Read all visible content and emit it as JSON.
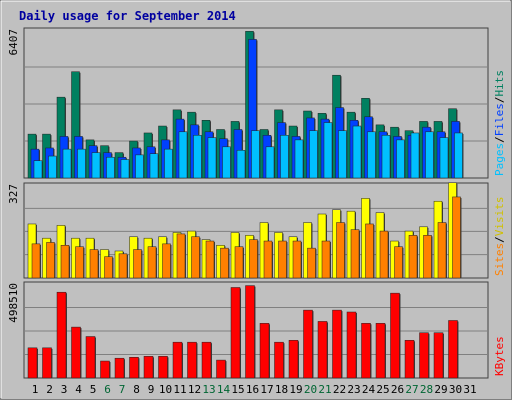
{
  "chart_data": {
    "type": "bar",
    "title": "Daily usage for September 2014",
    "categories": [
      "1",
      "2",
      "3",
      "4",
      "5",
      "6",
      "7",
      "8",
      "9",
      "10",
      "11",
      "12",
      "13",
      "14",
      "15",
      "16",
      "17",
      "18",
      "19",
      "20",
      "21",
      "22",
      "23",
      "24",
      "25",
      "26",
      "27",
      "28",
      "29",
      "30",
      "31"
    ],
    "weekend_days": [
      "6",
      "7",
      "13",
      "14",
      "20",
      "21",
      "27",
      "28"
    ],
    "day_colors": {
      "weekday": "#000000",
      "weekend": "#006633"
    },
    "panels": [
      {
        "id": "hits",
        "scale_max_label": "6407",
        "ymax": 6407,
        "grid_lines": [
          1602,
          3204,
          4805
        ],
        "right_labels": [
          {
            "text": "Hits",
            "color": "#008060"
          },
          {
            "text": "/",
            "color": "#000000"
          },
          {
            "text": "Files",
            "color": "#0040ff"
          },
          {
            "text": "/",
            "color": "#000000"
          },
          {
            "text": "Pages",
            "color": "#00c0ff"
          }
        ],
        "series": [
          {
            "name": "Hits",
            "color": "#008060",
            "values": [
              1900,
              1900,
              3500,
              4600,
              1650,
              1400,
              1100,
              1600,
              1950,
              2250,
              2950,
              2850,
              2500,
              2100,
              2450,
              6350,
              2100,
              2950,
              2250,
              2900,
              2800,
              4450,
              2850,
              3450,
              2300,
              2200,
              2050,
              2450,
              2450,
              3000
            ]
          },
          {
            "name": "Files",
            "color": "#0040ff",
            "values": [
              1250,
              1300,
              1800,
              1800,
              1400,
              1100,
              900,
              1300,
              1350,
              1650,
              2550,
              2300,
              2000,
              1700,
              2100,
              6000,
              1850,
              2400,
              1800,
              2600,
              2550,
              3050,
              2500,
              2650,
              2000,
              1800,
              1850,
              2200,
              2000,
              2450
            ]
          },
          {
            "name": "Pages",
            "color": "#00c0ff",
            "values": [
              750,
              950,
              1250,
              1250,
              1100,
              900,
              800,
              1000,
              1050,
              1250,
              2000,
              1850,
              1750,
              1350,
              1200,
              2050,
              1350,
              1850,
              1650,
              2050,
              2400,
              2050,
              2250,
              2000,
              1850,
              1650,
              1950,
              2000,
              1750,
              1950
            ]
          }
        ]
      },
      {
        "id": "visits",
        "scale_max_label": "327",
        "ymax": 327,
        "grid_lines": [
          82,
          164,
          245
        ],
        "right_labels": [
          {
            "text": "Visits",
            "color": "#d0c000"
          },
          {
            "text": "/",
            "color": "#000000"
          },
          {
            "text": "Sites",
            "color": "#ff8000"
          }
        ],
        "series": [
          {
            "name": "Visits",
            "color": "#ffff00",
            "values": [
              190,
              140,
              185,
              140,
              140,
              100,
              95,
              145,
              140,
              145,
              160,
              165,
              135,
              115,
              160,
              150,
              195,
              160,
              145,
              195,
              225,
              240,
              235,
              280,
              230,
              130,
              165,
              180,
              270,
              335
            ]
          },
          {
            "name": "Sites",
            "color": "#ff8000",
            "values": [
              120,
              125,
              115,
              110,
              100,
              75,
              85,
              100,
              110,
              120,
              155,
              145,
              130,
              105,
              110,
              135,
              130,
              130,
              130,
              105,
              130,
              195,
              170,
              190,
              165,
              110,
              150,
              150,
              195,
              285
            ]
          }
        ]
      },
      {
        "id": "kbytes",
        "scale_max_label": "498510",
        "ymax": 498510,
        "grid_lines": [
          124628,
          249255,
          373883
        ],
        "right_labels": [
          {
            "text": "KBytes",
            "color": "#ff0000"
          }
        ],
        "series": [
          {
            "name": "KBytes",
            "color": "#ff0000",
            "values": [
              160000,
              160000,
              455000,
              270000,
              220000,
              90000,
              105000,
              110000,
              115000,
              115000,
              190000,
              190000,
              190000,
              95000,
              480000,
              490000,
              290000,
              190000,
              200000,
              360000,
              300000,
              360000,
              350000,
              290000,
              290000,
              450000,
              200000,
              240000,
              240000,
              305000
            ]
          }
        ]
      }
    ]
  }
}
